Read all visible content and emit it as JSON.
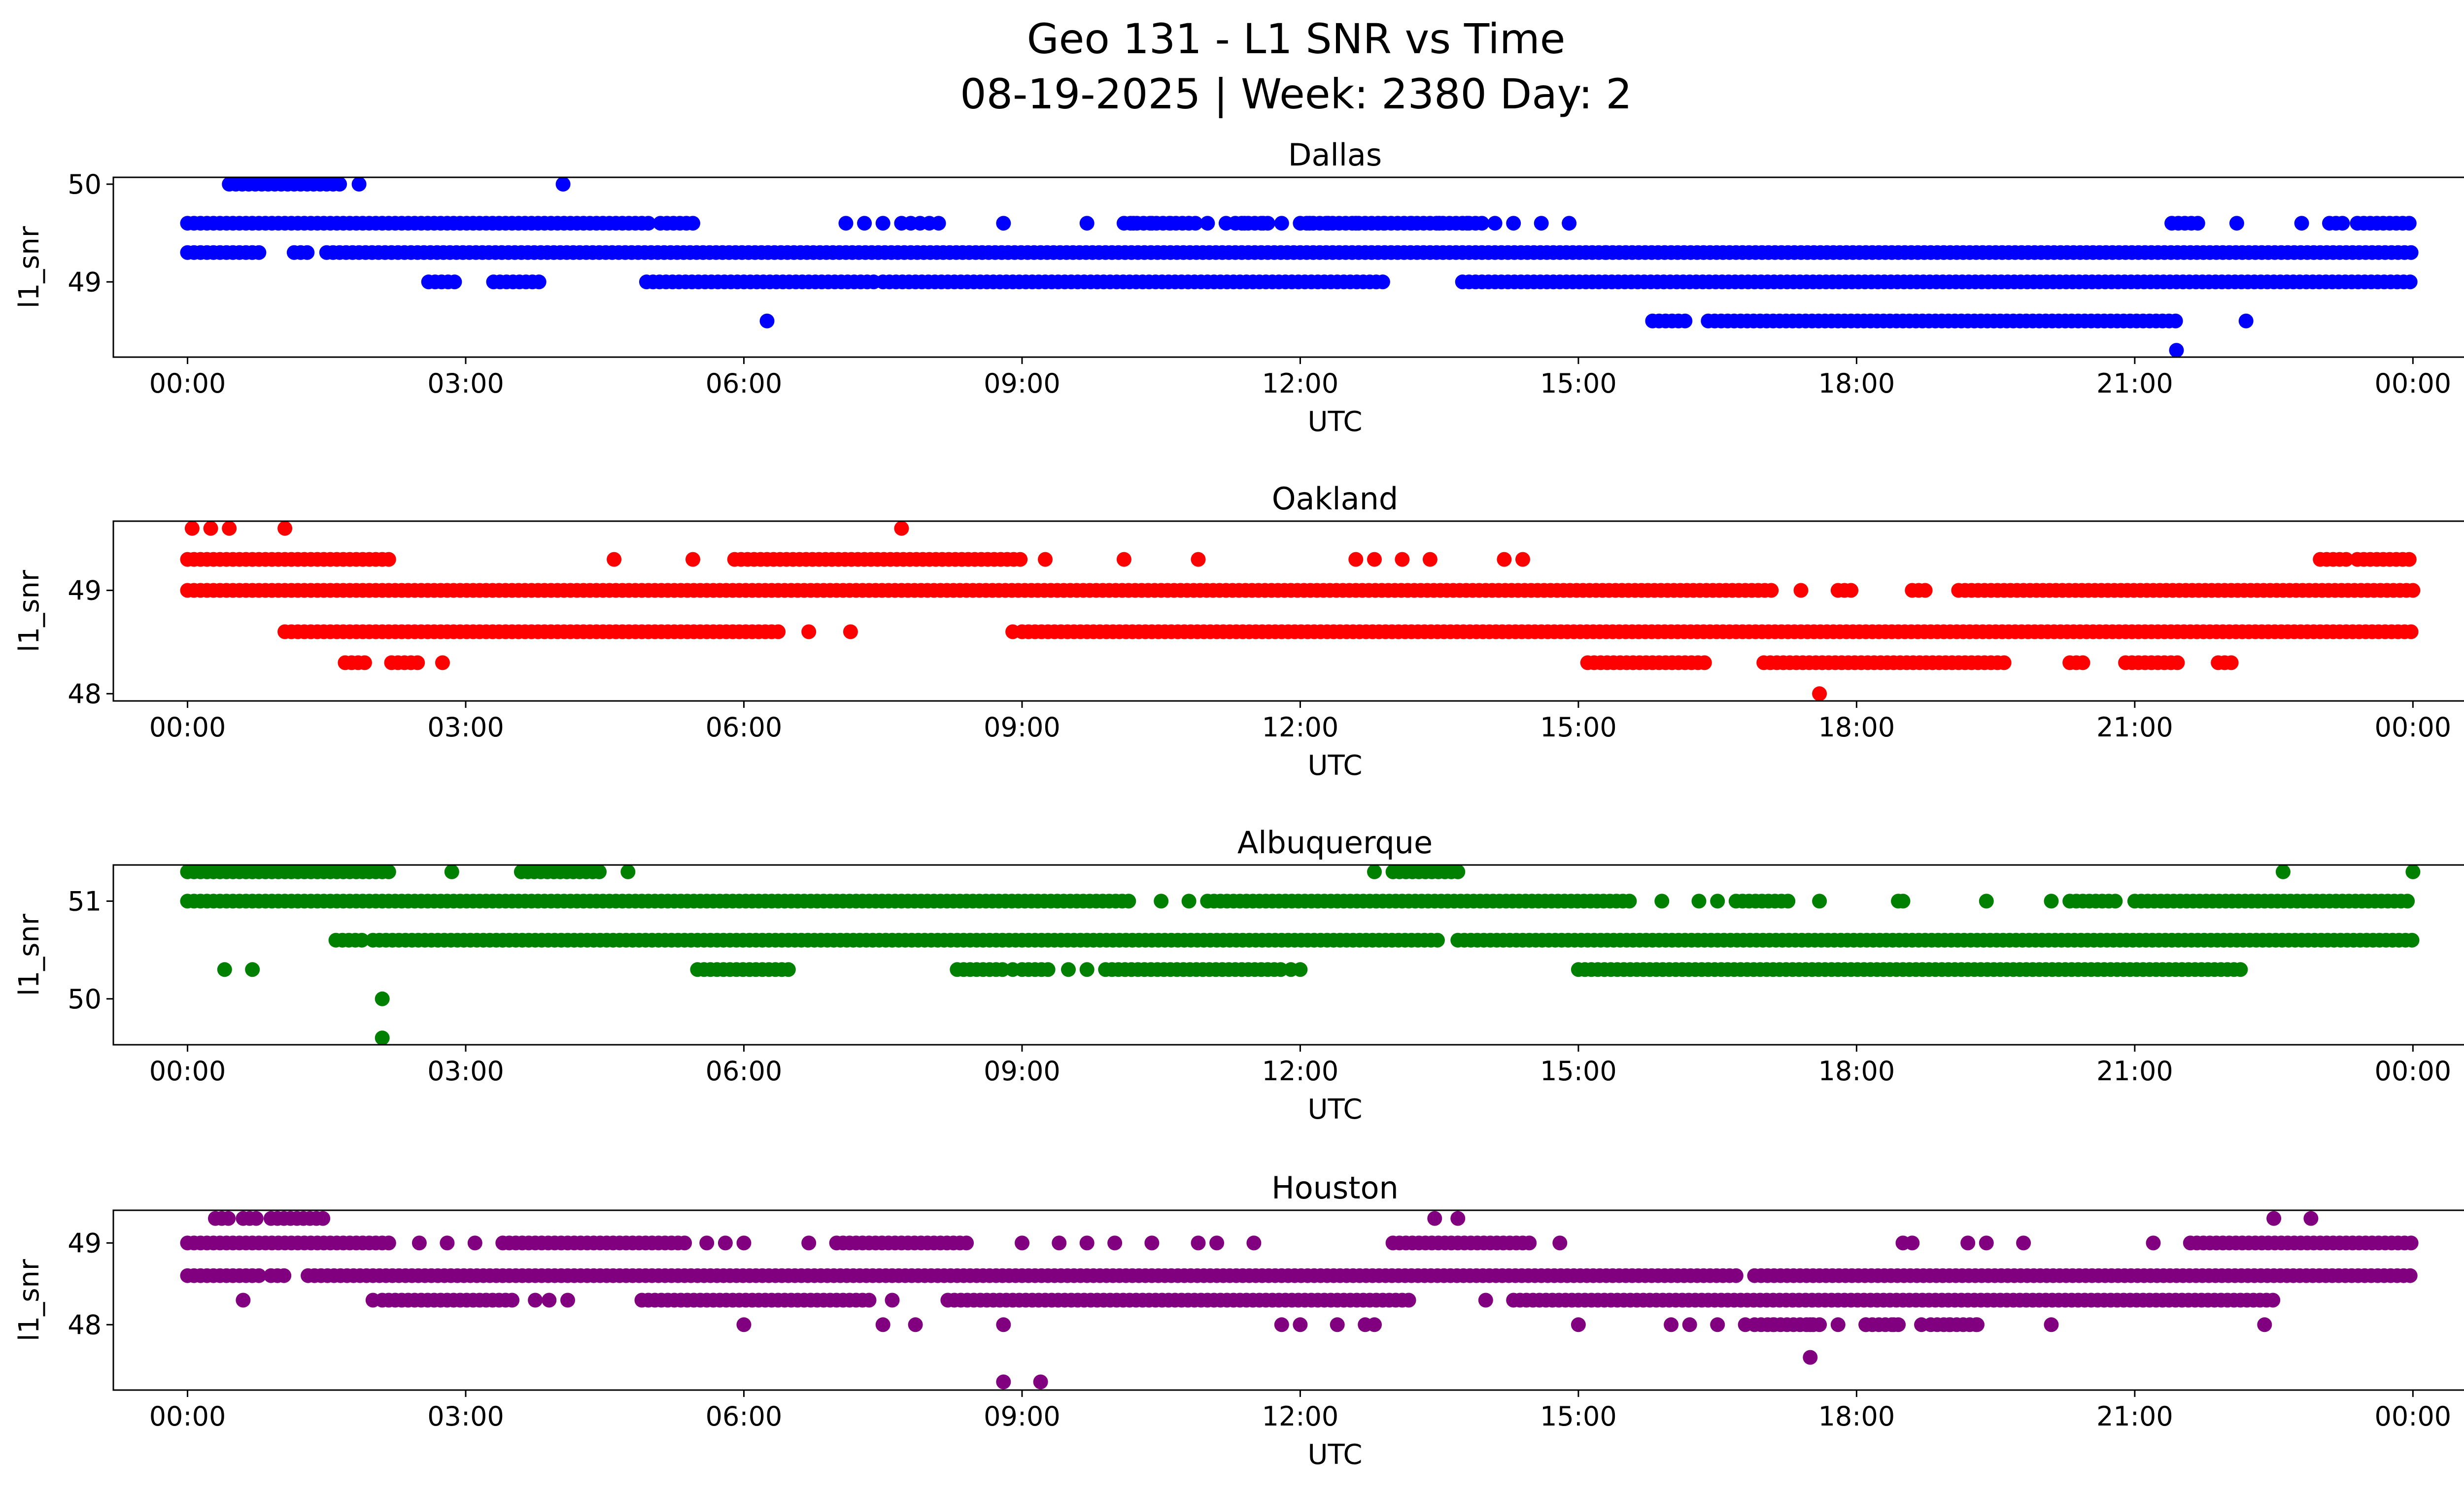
{
  "figure": {
    "title_line1": "Geo 131 - L1 SNR vs Time",
    "title_line2": "08-19-2025 | Week: 2380 Day: 2"
  },
  "chart_data": [
    {
      "type": "scatter",
      "title": "Dallas",
      "color": "#0000ff",
      "xlabel": "UTC",
      "ylabel": "l1_snr",
      "xlim_hours": [
        -0.8,
        25.55
      ],
      "ylim": [
        48.23,
        50.07
      ],
      "yticks": [
        49,
        50
      ],
      "xticks": [
        "00:00",
        "03:00",
        "06:00",
        "09:00",
        "12:00",
        "15:00",
        "18:00",
        "21:00",
        "00:00"
      ],
      "bands": [
        {
          "y": 50.0,
          "ranges": [
            [
              0.45,
              1.7
            ]
          ],
          "points": [
            1.85,
            4.05
          ]
        },
        {
          "y": 49.6,
          "ranges": [
            [
              0.0,
              5.0
            ],
            [
              5.1,
              5.5
            ]
          ],
          "points": [
            7.1,
            7.3,
            7.5,
            7.7,
            7.8,
            7.9,
            8.0,
            8.1,
            8.8,
            9.7,
            10.2,
            10.4,
            10.6,
            10.8,
            11.0,
            11.2,
            11.4,
            11.6,
            11.8,
            12.1,
            12.3,
            12.6,
            12.9,
            13.2,
            13.5,
            13.8,
            14.1,
            14.3,
            14.6,
            14.9
          ],
          "segments": [
            [
              10.1,
              10.9
            ],
            [
              11.3,
              11.7
            ],
            [
              12.0,
              14.0
            ],
            [
              21.4,
              21.7
            ],
            [
              23.1,
              23.3
            ],
            [
              23.4,
              24.0
            ]
          ],
          "tail_points": [
            22.1,
            22.8
          ]
        },
        {
          "y": 49.3,
          "ranges": [
            [
              0.0,
              0.8
            ],
            [
              1.15,
              1.3
            ],
            [
              1.5,
              15.3
            ],
            [
              15.3,
              24.0
            ]
          ]
        },
        {
          "y": 49.0,
          "ranges": [
            [
              2.6,
              2.9
            ],
            [
              3.3,
              3.8
            ],
            [
              4.95,
              7.4
            ],
            [
              7.5,
              12.9
            ],
            [
              13.75,
              24.0
            ]
          ]
        },
        {
          "y": 48.6,
          "points": [
            6.25
          ],
          "ranges": [
            [
              15.8,
              16.2
            ],
            [
              16.4,
              21.5
            ]
          ],
          "tail_points": [
            22.2
          ]
        },
        {
          "y": 48.3,
          "points": [
            21.45
          ]
        }
      ]
    },
    {
      "type": "scatter",
      "title": "Oakland",
      "color": "#ff0000",
      "xlabel": "UTC",
      "ylabel": "l1_snr",
      "xlim_hours": [
        -0.8,
        25.55
      ],
      "ylim": [
        47.93,
        49.67
      ],
      "yticks": [
        48,
        49
      ],
      "xticks": [
        "00:00",
        "03:00",
        "06:00",
        "09:00",
        "12:00",
        "15:00",
        "18:00",
        "21:00",
        "00:00"
      ],
      "bands": [
        {
          "y": 49.6,
          "points": [
            0.05,
            0.25,
            0.45,
            1.05,
            7.7
          ]
        },
        {
          "y": 49.3,
          "ranges": [
            [
              0.0,
              2.2
            ],
            [
              5.9,
              9.0
            ],
            [
              23.0,
              23.3
            ],
            [
              23.4,
              24.0
            ]
          ],
          "points": [
            4.6,
            5.45,
            9.25,
            10.1,
            10.9,
            12.6,
            12.8,
            13.1,
            13.4,
            14.2,
            14.4
          ]
        },
        {
          "y": 49.0,
          "ranges": [
            [
              0.0,
              17.1
            ],
            [
              17.8,
              18.0
            ],
            [
              18.6,
              18.8
            ],
            [
              19.1,
              24.0
            ]
          ],
          "points": [
            17.4
          ]
        },
        {
          "y": 48.6,
          "ranges": [
            [
              1.05,
              6.4
            ],
            [
              9.0,
              24.0
            ]
          ],
          "points": [
            6.7,
            7.15,
            8.9
          ]
        },
        {
          "y": 48.3,
          "ranges": [
            [
              1.7,
              1.95
            ],
            [
              2.2,
              2.5
            ],
            [
              15.1,
              16.4
            ],
            [
              17.0,
              19.6
            ],
            [
              20.3,
              20.5
            ],
            [
              20.9,
              21.5
            ],
            [
              21.9,
              22.1
            ]
          ],
          "points": [
            2.75
          ]
        },
        {
          "y": 48.0,
          "points": [
            17.6
          ]
        }
      ]
    },
    {
      "type": "scatter",
      "title": "Albuquerque",
      "color": "#008000",
      "xlabel": "UTC",
      "ylabel": "l1_snr",
      "xlim_hours": [
        -0.8,
        25.55
      ],
      "ylim": [
        49.53,
        51.37
      ],
      "yticks": [
        50,
        51
      ],
      "xticks": [
        "00:00",
        "03:00",
        "06:00",
        "09:00",
        "12:00",
        "15:00",
        "18:00",
        "21:00",
        "00:00"
      ],
      "bands": [
        {
          "y": 51.3,
          "ranges": [
            [
              0.0,
              2.2
            ],
            [
              3.6,
              4.5
            ],
            [
              13.0,
              13.7
            ]
          ],
          "points": [
            2.85,
            4.75,
            12.8,
            22.6,
            24.0
          ]
        },
        {
          "y": 51.0,
          "ranges": [
            [
              0.0,
              10.2
            ],
            [
              11.0,
              15.6
            ],
            [
              16.7,
              17.3
            ],
            [
              20.3,
              20.8
            ],
            [
              21.0,
              24.0
            ]
          ],
          "points": [
            10.5,
            10.8,
            15.9,
            16.3,
            16.5,
            17.6,
            18.45,
            18.5,
            19.4,
            20.1
          ]
        },
        {
          "y": 50.6,
          "ranges": [
            [
              1.6,
              1.9
            ],
            [
              2.0,
              13.5
            ],
            [
              13.7,
              24.0
            ]
          ]
        },
        {
          "y": 50.3,
          "ranges": [
            [
              5.5,
              6.5
            ],
            [
              8.3,
              8.8
            ],
            [
              9.0,
              9.3
            ],
            [
              9.9,
              11.8
            ],
            [
              15.0,
              22.2
            ]
          ],
          "points": [
            0.4,
            0.7,
            8.9,
            9.5,
            9.7,
            11.9,
            12.0
          ]
        },
        {
          "y": 50.0,
          "points": [
            2.1
          ]
        },
        {
          "y": 49.6,
          "points": [
            2.1
          ]
        }
      ]
    },
    {
      "type": "scatter",
      "title": "Houston",
      "color": "#800080",
      "xlabel": "UTC",
      "ylabel": "l1_snr",
      "xlim_hours": [
        -0.8,
        25.55
      ],
      "ylim": [
        47.2,
        49.4
      ],
      "yticks": [
        48,
        49
      ],
      "xticks": [
        "00:00",
        "03:00",
        "06:00",
        "09:00",
        "12:00",
        "15:00",
        "18:00",
        "21:00",
        "00:00"
      ],
      "bands": [
        {
          "y": 49.3,
          "ranges": [
            [
              0.3,
              0.5
            ],
            [
              0.6,
              0.8
            ],
            [
              0.9,
              1.5
            ]
          ],
          "points": [
            13.45,
            13.7,
            22.5,
            22.9
          ]
        },
        {
          "y": 49.0,
          "ranges": [
            [
              0.0,
              2.2
            ],
            [
              3.4,
              5.4
            ],
            [
              7.0,
              8.4
            ],
            [
              13.0,
              14.5
            ],
            [
              21.6,
              24.0
            ]
          ],
          "points": [
            2.5,
            2.8,
            3.1,
            5.6,
            5.8,
            6.0,
            6.7,
            9.0,
            9.4,
            9.7,
            10.0,
            10.4,
            10.9,
            11.1,
            11.5,
            14.8,
            18.5,
            18.6,
            19.2,
            19.4,
            19.8,
            21.2
          ]
        },
        {
          "y": 48.6,
          "ranges": [
            [
              0.0,
              0.8
            ],
            [
              0.9,
              1.1
            ],
            [
              1.3,
              16.7
            ],
            [
              16.9,
              24.0
            ]
          ]
        },
        {
          "y": 48.3,
          "ranges": [
            [
              2.1,
              3.5
            ],
            [
              4.9,
              7.4
            ],
            [
              8.2,
              13.2
            ],
            [
              14.3,
              22.5
            ]
          ],
          "points": [
            0.6,
            2.0,
            3.75,
            3.9,
            4.1,
            7.6,
            14.0
          ]
        },
        {
          "y": 48.0,
          "points": [
            6.0,
            7.5,
            7.85,
            8.8,
            11.8,
            12.0,
            12.4,
            12.7,
            12.8,
            15.0,
            16.0,
            16.2,
            16.5,
            16.8,
            17.1,
            17.5,
            17.8,
            18.1,
            18.4,
            18.7,
            19.0,
            19.3,
            20.1,
            22.4
          ],
          "ranges": [
            [
              16.9,
              17.6
            ],
            [
              18.1,
              18.5
            ],
            [
              18.8,
              19.3
            ]
          ]
        },
        {
          "y": 47.6,
          "points": [
            17.5
          ]
        },
        {
          "y": 47.3,
          "points": [
            8.8,
            9.2
          ]
        }
      ]
    }
  ]
}
